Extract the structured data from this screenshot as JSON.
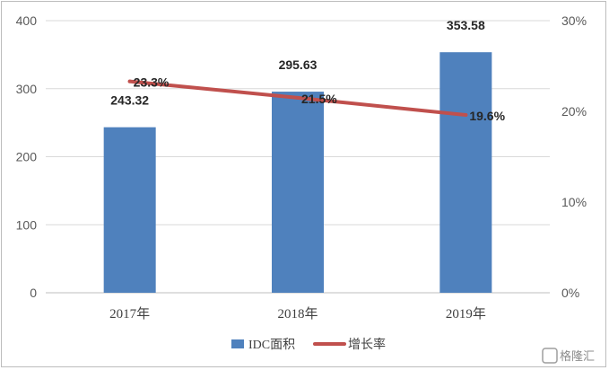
{
  "chart_data": {
    "type": "bar",
    "categories": [
      "2017年",
      "2018年",
      "2019年"
    ],
    "series": [
      {
        "name": "IDC面积",
        "type": "bar",
        "axis": "left",
        "values": [
          243.32,
          295.63,
          353.58
        ],
        "labels": [
          "243.32",
          "295.63",
          "353.58"
        ],
        "color": "#4f81bd"
      },
      {
        "name": "增长率",
        "type": "line",
        "axis": "right",
        "values": [
          23.3,
          21.5,
          19.6
        ],
        "labels": [
          "23.3%",
          "21.5%",
          "19.6%"
        ],
        "color": "#c0504d"
      }
    ],
    "y_left": {
      "ylim": [
        0,
        400
      ],
      "ticks": [
        "0",
        "100",
        "200",
        "300",
        "400"
      ]
    },
    "y_right": {
      "ylim": [
        0,
        30
      ],
      "ticks": [
        "0%",
        "10%",
        "20%",
        "30%"
      ]
    },
    "grid": true,
    "legend": "bottom-center"
  },
  "watermark": "格隆汇"
}
